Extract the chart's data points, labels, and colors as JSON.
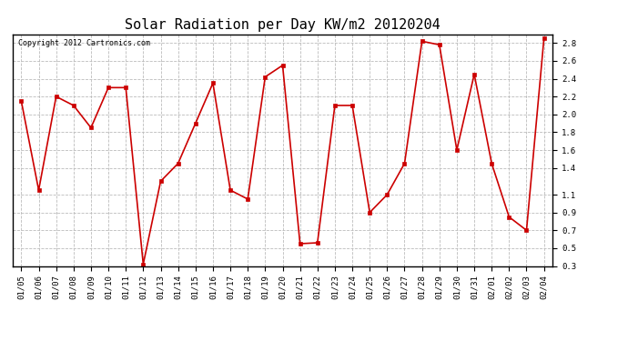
{
  "title": "Solar Radiation per Day KW/m2 20120204",
  "copyright_text": "Copyright 2012 Cartronics.com",
  "dates": [
    "01/05",
    "01/06",
    "01/07",
    "01/08",
    "01/09",
    "01/10",
    "01/11",
    "01/12",
    "01/13",
    "01/14",
    "01/15",
    "01/16",
    "01/17",
    "01/18",
    "01/19",
    "01/20",
    "01/21",
    "01/22",
    "01/23",
    "01/24",
    "01/25",
    "01/26",
    "01/27",
    "01/28",
    "01/29",
    "01/30",
    "01/31",
    "02/01",
    "02/02",
    "02/03",
    "02/04"
  ],
  "values": [
    2.15,
    1.15,
    2.2,
    2.1,
    1.85,
    2.3,
    2.3,
    0.32,
    1.25,
    1.45,
    1.9,
    2.35,
    1.15,
    1.05,
    2.42,
    2.55,
    0.55,
    0.56,
    2.1,
    2.1,
    0.9,
    1.1,
    1.45,
    2.82,
    2.78,
    1.6,
    2.45,
    1.45,
    0.85,
    0.7,
    2.85
  ],
  "ylim": [
    0.3,
    2.9
  ],
  "yticks": [
    0.3,
    0.5,
    0.7,
    0.9,
    1.1,
    1.4,
    1.6,
    1.8,
    2.0,
    2.2,
    2.4,
    2.6,
    2.8
  ],
  "line_color": "#cc0000",
  "marker": "s",
  "marker_size": 2.5,
  "line_width": 1.2,
  "bg_color": "#ffffff",
  "grid_color": "#bbbbbb",
  "title_fontsize": 11,
  "tick_fontsize": 6.5,
  "copyright_fontsize": 6
}
